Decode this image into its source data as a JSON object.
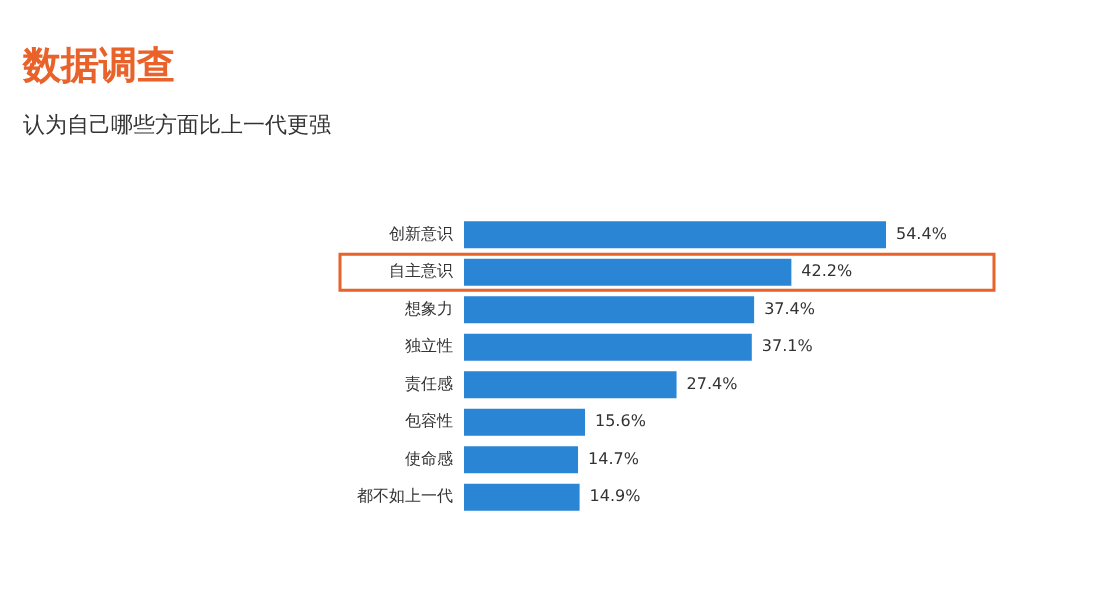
{
  "chart_data": {
    "type": "bar",
    "orientation": "horizontal",
    "title": "数据调查",
    "subtitle": "认为自己哪些方面比上一代更强",
    "categories": [
      "创新意识",
      "自主意识",
      "想象力",
      "独立性",
      "责任感",
      "包容性",
      "使命感",
      "都不如上一代"
    ],
    "values": [
      54.4,
      42.2,
      37.4,
      37.1,
      27.4,
      15.6,
      14.7,
      14.9
    ],
    "value_labels": [
      "54.4%",
      "42.2%",
      "37.4%",
      "37.1%",
      "27.4%",
      "15.6%",
      "14.7%",
      "14.9%"
    ],
    "color": "#2a86d4",
    "grid": false,
    "tick_labels": "y"
  }
}
